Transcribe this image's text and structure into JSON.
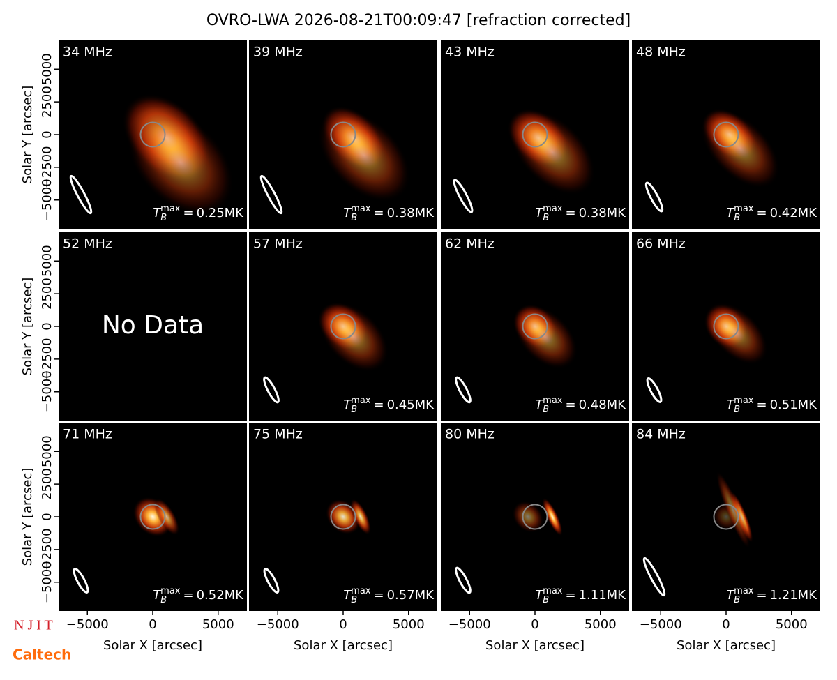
{
  "chart_data": {
    "type": "image_grid",
    "title": "OVRO-LWA 2026-08-21T00:09:47 [refraction corrected]",
    "x_label": "Solar X [arcsec]",
    "y_label": "Solar Y [arcsec]",
    "xlim": [
      -7200,
      7200
    ],
    "ylim": [
      -7200,
      7200
    ],
    "xticks": [
      {
        "value": -5000,
        "label": "−5000"
      },
      0,
      5000
    ],
    "yticks": [
      {
        "value": -5000,
        "label": "−5000"
      },
      {
        "value": -2500,
        "label": "−2500"
      },
      0,
      2500,
      5000
    ],
    "tmax_symbol": {
      "base": "T",
      "sub": "B",
      "sup": "max",
      "eq": "="
    },
    "panels": [
      {
        "title": "34 MHz",
        "tmax_label": "0.25MK"
      },
      {
        "title": "39 MHz",
        "tmax_label": "0.38MK"
      },
      {
        "title": "43 MHz",
        "tmax_label": "0.38MK"
      },
      {
        "title": "48 MHz",
        "tmax_label": "0.42MK"
      },
      {
        "title": "52 MHz",
        "annotation": "No Data"
      },
      {
        "title": "57 MHz",
        "tmax_label": "0.45MK"
      },
      {
        "title": "62 MHz",
        "tmax_label": "0.48MK"
      },
      {
        "title": "66 MHz",
        "tmax_label": "0.51MK"
      },
      {
        "title": "71 MHz",
        "tmax_label": "0.52MK"
      },
      {
        "title": "75 MHz",
        "tmax_label": "0.57MK"
      },
      {
        "title": "80 MHz",
        "tmax_label": "1.11MK"
      },
      {
        "title": "84 MHz",
        "tmax_label": "1.21MK"
      }
    ]
  },
  "logos": {
    "njit": "N J I T",
    "caltech": "Caltech"
  }
}
